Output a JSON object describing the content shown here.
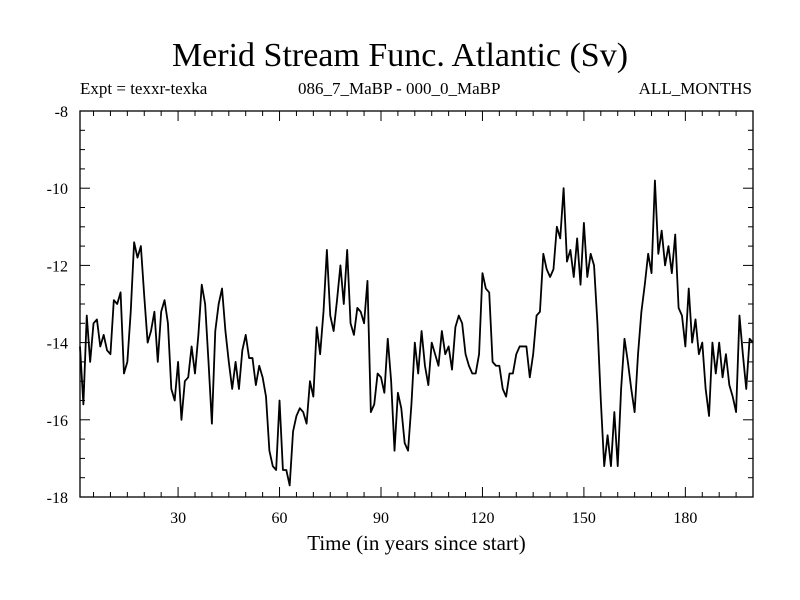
{
  "header": {
    "title": "Merid Stream Func. Atlantic (Sv)",
    "expt": "Expt = texxr-texka",
    "comparison": "086_7_MaBP - 000_0_MaBP",
    "period": "ALL_MONTHS"
  },
  "chart_data": {
    "type": "line",
    "title": "Merid Stream Func. Atlantic (Sv)",
    "xlabel": "Time (in years since start)",
    "ylabel": "",
    "xlim": [
      1,
      200
    ],
    "ylim": [
      -18,
      -8
    ],
    "xticks": [
      30,
      60,
      90,
      120,
      150,
      180
    ],
    "xtick_labels": [
      "30",
      "60",
      "90",
      "120",
      "150",
      "180"
    ],
    "yticks": [
      -8,
      -10,
      -12,
      -14,
      -16,
      -18
    ],
    "ytick_labels": [
      "-8",
      "-10",
      "-12",
      "-14",
      "-16",
      "-18"
    ],
    "series": [
      {
        "name": "Merid Stream Func. Atlantic",
        "color": "#000000",
        "x": [
          1,
          2,
          3,
          4,
          5,
          6,
          7,
          8,
          9,
          10,
          11,
          12,
          13,
          14,
          15,
          16,
          17,
          18,
          19,
          20,
          21,
          22,
          23,
          24,
          25,
          26,
          27,
          28,
          29,
          30,
          31,
          32,
          33,
          34,
          35,
          36,
          37,
          38,
          39,
          40,
          41,
          42,
          43,
          44,
          45,
          46,
          47,
          48,
          49,
          50,
          51,
          52,
          53,
          54,
          55,
          56,
          57,
          58,
          59,
          60,
          61,
          62,
          63,
          64,
          65,
          66,
          67,
          68,
          69,
          70,
          71,
          72,
          73,
          74,
          75,
          76,
          77,
          78,
          79,
          80,
          81,
          82,
          83,
          84,
          85,
          86,
          87,
          88,
          89,
          90,
          91,
          92,
          93,
          94,
          95,
          96,
          97,
          98,
          99,
          100,
          101,
          102,
          103,
          104,
          105,
          106,
          107,
          108,
          109,
          110,
          111,
          112,
          113,
          114,
          115,
          116,
          117,
          118,
          119,
          120,
          121,
          122,
          123,
          124,
          125,
          126,
          127,
          128,
          129,
          130,
          131,
          132,
          133,
          134,
          135,
          136,
          137,
          138,
          139,
          140,
          141,
          142,
          143,
          144,
          145,
          146,
          147,
          148,
          149,
          150,
          151,
          152,
          153,
          154,
          155,
          156,
          157,
          158,
          159,
          160,
          161,
          162,
          163,
          164,
          165,
          166,
          167,
          168,
          169,
          170,
          171,
          172,
          173,
          174,
          175,
          176,
          177,
          178,
          179,
          180,
          181,
          182,
          183,
          184,
          185,
          186,
          187,
          188,
          189,
          190,
          191,
          192,
          193,
          194,
          195,
          196,
          197,
          198,
          199,
          200
        ],
        "values": [
          -14.1,
          -15.6,
          -13.3,
          -14.5,
          -13.5,
          -13.4,
          -14.1,
          -13.8,
          -14.2,
          -14.3,
          -12.9,
          -13.0,
          -12.7,
          -14.8,
          -14.5,
          -13.2,
          -11.4,
          -11.8,
          -11.5,
          -12.8,
          -14.0,
          -13.7,
          -13.2,
          -14.5,
          -13.2,
          -12.9,
          -13.5,
          -15.2,
          -15.5,
          -14.5,
          -16.0,
          -15.0,
          -14.9,
          -14.1,
          -14.8,
          -13.8,
          -12.5,
          -13.0,
          -14.5,
          -16.1,
          -13.7,
          -13.0,
          -12.6,
          -13.7,
          -14.5,
          -15.2,
          -14.5,
          -15.2,
          -14.2,
          -13.8,
          -14.4,
          -14.4,
          -15.1,
          -14.6,
          -14.9,
          -15.4,
          -16.8,
          -17.2,
          -17.3,
          -15.5,
          -17.3,
          -17.3,
          -17.7,
          -16.3,
          -15.9,
          -15.7,
          -15.8,
          -16.1,
          -15.0,
          -15.4,
          -13.6,
          -14.3,
          -13.2,
          -11.6,
          -13.3,
          -13.7,
          -12.9,
          -12.0,
          -13.0,
          -11.6,
          -13.5,
          -13.8,
          -13.1,
          -13.2,
          -13.5,
          -12.4,
          -15.8,
          -15.6,
          -14.8,
          -14.9,
          -15.3,
          -13.9,
          -15.0,
          -16.8,
          -15.3,
          -15.7,
          -16.6,
          -16.8,
          -15.6,
          -14.0,
          -14.8,
          -13.7,
          -14.6,
          -15.1,
          -14.0,
          -14.3,
          -14.6,
          -13.7,
          -14.3,
          -14.1,
          -14.7,
          -13.6,
          -13.3,
          -13.5,
          -14.3,
          -14.6,
          -14.8,
          -14.8,
          -14.3,
          -12.2,
          -12.6,
          -12.7,
          -14.5,
          -14.6,
          -14.6,
          -15.2,
          -15.4,
          -14.8,
          -14.8,
          -14.3,
          -14.1,
          -14.1,
          -14.1,
          -14.9,
          -14.3,
          -13.3,
          -13.2,
          -11.7,
          -12.1,
          -12.3,
          -12.1,
          -11.0,
          -11.3,
          -10.0,
          -11.9,
          -11.6,
          -12.3,
          -11.3,
          -12.5,
          -10.9,
          -12.3,
          -11.7,
          -12.0,
          -13.5,
          -15.5,
          -17.2,
          -16.4,
          -17.2,
          -15.8,
          -17.2,
          -15.2,
          -13.9,
          -14.5,
          -15.2,
          -15.8,
          -14.3,
          -13.2,
          -12.5,
          -11.7,
          -12.2,
          -9.8,
          -11.7,
          -11.1,
          -12.0,
          -11.5,
          -12.2,
          -11.2,
          -13.1,
          -13.3,
          -14.1,
          -12.6,
          -14.0,
          -13.4,
          -14.3,
          -14.0,
          -15.2,
          -15.9,
          -14.0,
          -14.8,
          -14.0,
          -14.9,
          -14.3,
          -15.1,
          -15.4,
          -15.8,
          -13.3,
          -14.3,
          -15.2,
          -13.9,
          -14.0
        ]
      }
    ]
  }
}
